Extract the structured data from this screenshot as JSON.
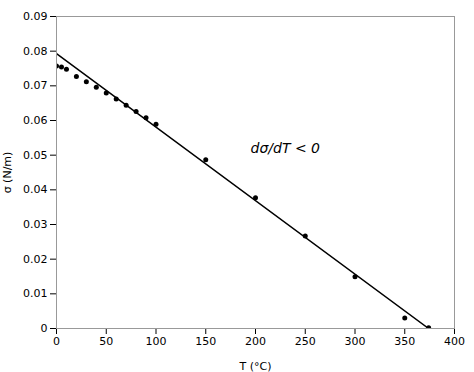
{
  "chart_data": {
    "type": "scatter",
    "xlabel": "T (°C)",
    "ylabel": "σ (N/m)",
    "xlim": [
      0,
      400
    ],
    "ylim": [
      0,
      0.09
    ],
    "xticks": [
      0,
      50,
      100,
      150,
      200,
      250,
      300,
      350,
      400
    ],
    "yticks": [
      0,
      0.01,
      0.02,
      0.03,
      0.04,
      0.05,
      0.06,
      0.07,
      0.08,
      0.09
    ],
    "grid": false,
    "series": [
      {
        "type": "line",
        "color": "black",
        "x": [
          0,
          374
        ],
        "values": [
          0.0793,
          0.0
        ]
      },
      {
        "type": "scatter",
        "color": "black",
        "x": [
          0,
          5,
          10,
          20,
          30,
          40,
          50,
          60,
          70,
          80,
          90,
          100,
          150,
          200,
          250,
          300,
          350,
          374
        ],
        "values": [
          0.0757,
          0.0754,
          0.0748,
          0.0727,
          0.0712,
          0.0696,
          0.0679,
          0.0662,
          0.0644,
          0.0626,
          0.0608,
          0.0589,
          0.0487,
          0.0377,
          0.0267,
          0.0149,
          0.003,
          0.0002
        ]
      }
    ],
    "annotations": [
      {
        "text": "dσ/dT < 0",
        "x": 195,
        "y": 0.052
      }
    ]
  }
}
